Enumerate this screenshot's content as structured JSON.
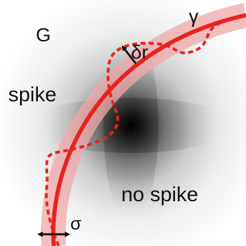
{
  "labels": {
    "region_name": "G",
    "curve_name": "γ",
    "displacement": "δr",
    "inside_region": "spike",
    "outside_region": "no spike",
    "band_width": "σ"
  },
  "colors": {
    "curve": "#e8231f",
    "band": "#f2a8a8",
    "arrow": "#111111",
    "background_center": "#000000",
    "background_edge": "#ffffff"
  }
}
